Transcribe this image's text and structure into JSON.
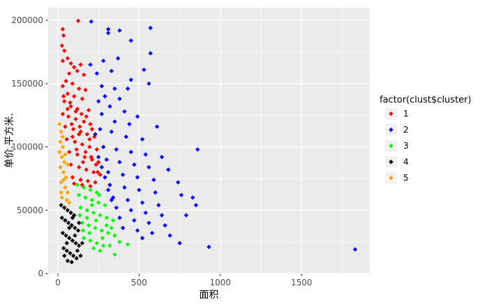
{
  "chart_data": {
    "type": "scatter",
    "title": "",
    "xlabel": "面积",
    "ylabel": "单价.平方米.",
    "xlim": [
      -60,
      1920
    ],
    "ylim": [
      0,
      210000
    ],
    "x_ticks": [
      0,
      500,
      1000,
      1500
    ],
    "y_ticks": [
      0,
      50000,
      100000,
      150000,
      200000
    ],
    "x_tick_labels": [
      "0",
      "500",
      "1000",
      "1500"
    ],
    "y_tick_labels": [
      "0",
      "50000",
      "100000",
      "150000",
      "200000"
    ],
    "grid": true,
    "panel_background": "#ebebeb",
    "grid_color": "#ffffff",
    "legend": {
      "title": "factor(clust$cluster)",
      "placement": "right"
    },
    "series": [
      {
        "name": "1",
        "color": "#ff0000",
        "points": [
          [
            125,
            199500
          ],
          [
            30,
            193000
          ],
          [
            35,
            188000
          ],
          [
            25,
            180000
          ],
          [
            40,
            176000
          ],
          [
            60,
            170000
          ],
          [
            30,
            168000
          ],
          [
            80,
            166000
          ],
          [
            100,
            163000
          ],
          [
            140,
            165000
          ],
          [
            120,
            160000
          ],
          [
            70,
            158000
          ],
          [
            160,
            157000
          ],
          [
            50,
            152000
          ],
          [
            90,
            150000
          ],
          [
            30,
            148000
          ],
          [
            130,
            146000
          ],
          [
            170,
            145000
          ],
          [
            60,
            142000
          ],
          [
            100,
            140000
          ],
          [
            150,
            138000
          ],
          [
            40,
            136000
          ],
          [
            80,
            132000
          ],
          [
            120,
            130000
          ],
          [
            190,
            129000
          ],
          [
            30,
            126000
          ],
          [
            65,
            124000
          ],
          [
            110,
            122000
          ],
          [
            160,
            120000
          ],
          [
            200,
            118000
          ],
          [
            45,
            116000
          ],
          [
            95,
            114000
          ],
          [
            140,
            112000
          ],
          [
            180,
            110000
          ],
          [
            225,
            108000
          ],
          [
            55,
            106000
          ],
          [
            105,
            104000
          ],
          [
            150,
            102000
          ],
          [
            195,
            100000
          ],
          [
            240,
            98000
          ],
          [
            70,
            96000
          ],
          [
            120,
            94000
          ],
          [
            165,
            92000
          ],
          [
            210,
            90000
          ],
          [
            250,
            88000
          ],
          [
            80,
            86000
          ],
          [
            130,
            84000
          ],
          [
            175,
            82000
          ],
          [
            220,
            80000
          ],
          [
            260,
            78000
          ],
          [
            90,
            76000
          ],
          [
            140,
            74000
          ],
          [
            185,
            73000
          ],
          [
            230,
            72000
          ],
          [
            100,
            71000
          ],
          [
            150,
            70000
          ],
          [
            200,
            69000
          ],
          [
            35,
            140000
          ],
          [
            75,
            135000
          ],
          [
            110,
            128000
          ],
          [
            145,
            126000
          ],
          [
            175,
            124000
          ],
          [
            210,
            114000
          ],
          [
            130,
            110000
          ],
          [
            90,
            108000
          ],
          [
            170,
            96000
          ],
          [
            235,
            86000
          ],
          [
            115,
            98000
          ],
          [
            155,
            88000
          ],
          [
            195,
            106000
          ],
          [
            60,
            130000
          ],
          [
            85,
            118000
          ],
          [
            135,
            116000
          ],
          [
            205,
            92000
          ],
          [
            245,
            80000
          ]
        ]
      },
      {
        "name": "2",
        "color": "#0000ff",
        "points": [
          [
            205,
            199000
          ],
          [
            310,
            193000
          ],
          [
            380,
            192000
          ],
          [
            570,
            194000
          ],
          [
            310,
            190000
          ],
          [
            450,
            184000
          ],
          [
            570,
            174000
          ],
          [
            200,
            165000
          ],
          [
            280,
            168000
          ],
          [
            370,
            170000
          ],
          [
            530,
            161000
          ],
          [
            240,
            158000
          ],
          [
            330,
            160000
          ],
          [
            450,
            153000
          ],
          [
            560,
            150000
          ],
          [
            270,
            148000
          ],
          [
            350,
            146000
          ],
          [
            430,
            146000
          ],
          [
            290,
            140000
          ],
          [
            380,
            138000
          ],
          [
            250,
            136000
          ],
          [
            320,
            132000
          ],
          [
            410,
            128000
          ],
          [
            490,
            124000
          ],
          [
            270,
            126000
          ],
          [
            350,
            120000
          ],
          [
            440,
            118000
          ],
          [
            610,
            116000
          ],
          [
            260,
            114000
          ],
          [
            330,
            112000
          ],
          [
            420,
            108000
          ],
          [
            520,
            106000
          ],
          [
            860,
            98000
          ],
          [
            280,
            100000
          ],
          [
            360,
            98000
          ],
          [
            450,
            96000
          ],
          [
            540,
            94000
          ],
          [
            640,
            92000
          ],
          [
            300,
            90000
          ],
          [
            380,
            88000
          ],
          [
            470,
            86000
          ],
          [
            560,
            84000
          ],
          [
            680,
            82000
          ],
          [
            310,
            80000
          ],
          [
            400,
            78000
          ],
          [
            490,
            76000
          ],
          [
            590,
            74000
          ],
          [
            740,
            72000
          ],
          [
            320,
            70000
          ],
          [
            410,
            68000
          ],
          [
            500,
            66000
          ],
          [
            600,
            64000
          ],
          [
            760,
            62000
          ],
          [
            830,
            60000
          ],
          [
            340,
            60000
          ],
          [
            430,
            58000
          ],
          [
            520,
            56000
          ],
          [
            620,
            54000
          ],
          [
            850,
            54000
          ],
          [
            360,
            52000
          ],
          [
            450,
            50000
          ],
          [
            540,
            48000
          ],
          [
            640,
            46000
          ],
          [
            790,
            46000
          ],
          [
            380,
            44000
          ],
          [
            470,
            42000
          ],
          [
            560,
            40000
          ],
          [
            660,
            38000
          ],
          [
            400,
            36000
          ],
          [
            490,
            34000
          ],
          [
            580,
            32000
          ],
          [
            690,
            30000
          ],
          [
            520,
            28000
          ],
          [
            750,
            24000
          ],
          [
            930,
            21000
          ],
          [
            1830,
            19000
          ],
          [
            230,
            110000
          ],
          [
            250,
            92000
          ],
          [
            270,
            84000
          ],
          [
            290,
            76000
          ],
          [
            310,
            66000
          ],
          [
            330,
            58000
          ]
        ]
      },
      {
        "name": "3",
        "color": "#00ff00",
        "points": [
          [
            120,
            70000
          ],
          [
            160,
            68000
          ],
          [
            200,
            66000
          ],
          [
            240,
            64000
          ],
          [
            130,
            62000
          ],
          [
            170,
            60000
          ],
          [
            210,
            58000
          ],
          [
            250,
            56000
          ],
          [
            290,
            54000
          ],
          [
            140,
            52000
          ],
          [
            180,
            50000
          ],
          [
            220,
            48000
          ],
          [
            260,
            46000
          ],
          [
            300,
            44000
          ],
          [
            340,
            42000
          ],
          [
            150,
            40000
          ],
          [
            190,
            38000
          ],
          [
            230,
            36000
          ],
          [
            270,
            34000
          ],
          [
            310,
            32000
          ],
          [
            350,
            30000
          ],
          [
            160,
            28000
          ],
          [
            200,
            26000
          ],
          [
            240,
            24000
          ],
          [
            280,
            22000
          ],
          [
            320,
            22000
          ],
          [
            380,
            25000
          ],
          [
            430,
            23000
          ],
          [
            350,
            15000
          ],
          [
            220,
            20000
          ],
          [
            260,
            18000
          ],
          [
            180,
            44000
          ],
          [
            210,
            54000
          ],
          [
            300,
            38000
          ],
          [
            330,
            36000
          ],
          [
            135,
            46000
          ],
          [
            275,
            28000
          ],
          [
            235,
            42000
          ],
          [
            195,
            32000
          ],
          [
            155,
            34000
          ],
          [
            255,
            62000
          ]
        ]
      },
      {
        "name": "4",
        "color": "#000000",
        "points": [
          [
            20,
            54000
          ],
          [
            40,
            52000
          ],
          [
            60,
            50000
          ],
          [
            80,
            48000
          ],
          [
            100,
            46000
          ],
          [
            25,
            44000
          ],
          [
            45,
            42000
          ],
          [
            65,
            40000
          ],
          [
            85,
            38000
          ],
          [
            105,
            36000
          ],
          [
            125,
            34000
          ],
          [
            30,
            32000
          ],
          [
            50,
            30000
          ],
          [
            70,
            28000
          ],
          [
            90,
            26000
          ],
          [
            110,
            24000
          ],
          [
            130,
            22000
          ],
          [
            35,
            20000
          ],
          [
            55,
            18000
          ],
          [
            75,
            16000
          ],
          [
            95,
            14000
          ],
          [
            115,
            12000
          ],
          [
            140,
            14000
          ],
          [
            60,
            10000
          ],
          [
            85,
            9000
          ],
          [
            120,
            18000
          ],
          [
            150,
            24000
          ],
          [
            70,
            36000
          ],
          [
            90,
            44000
          ],
          [
            55,
            24000
          ],
          [
            105,
            30000
          ],
          [
            40,
            14000
          ],
          [
            130,
            40000
          ]
        ]
      },
      {
        "name": "5",
        "color": "#ffa500",
        "points": [
          [
            10,
            118000
          ],
          [
            20,
            112000
          ],
          [
            15,
            104000
          ],
          [
            30,
            100000
          ],
          [
            10,
            96000
          ],
          [
            25,
            92000
          ],
          [
            40,
            88000
          ],
          [
            15,
            84000
          ],
          [
            35,
            80000
          ],
          [
            50,
            76000
          ],
          [
            20,
            72000
          ],
          [
            45,
            68000
          ],
          [
            60,
            64000
          ],
          [
            25,
            60000
          ],
          [
            55,
            58000
          ],
          [
            70,
            56000
          ],
          [
            30,
            108000
          ],
          [
            45,
            94000
          ],
          [
            35,
            74000
          ],
          [
            60,
            86000
          ],
          [
            20,
            64000
          ]
        ]
      }
    ]
  }
}
